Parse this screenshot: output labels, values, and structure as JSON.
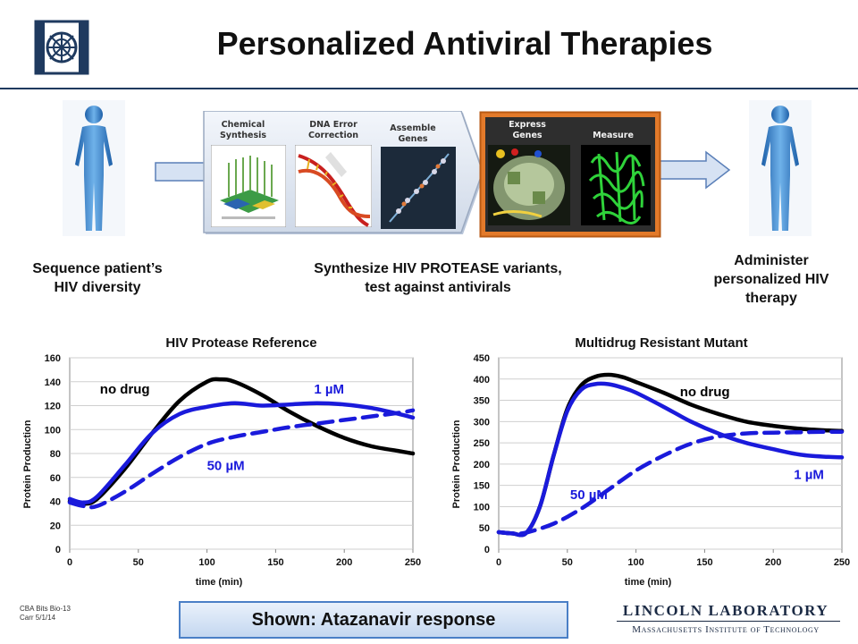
{
  "slide": {
    "title": "Personalized Antiviral Therapies",
    "captions": {
      "sequence": [
        "Sequence patient’s",
        "HIV diversity"
      ],
      "synthesize": [
        "Synthesize HIV PROTEASE variants,",
        "test against antivirals"
      ],
      "administer": [
        "Administer",
        "personalized HIV",
        "therapy"
      ]
    },
    "steps": [
      {
        "label": [
          "Chemical",
          "Synthesis"
        ]
      },
      {
        "label": [
          "DNA Error",
          "Correction"
        ]
      },
      {
        "label": [
          "Assemble",
          "Genes"
        ]
      },
      {
        "label": [
          "Express",
          "Genes"
        ]
      },
      {
        "label": [
          "Measure"
        ]
      }
    ],
    "footnote": [
      "CBA Bits Bio-13",
      "Carr 5/1/14"
    ],
    "banner": "Shown: Atazanavir response",
    "logo": {
      "line1": "LINCOLN LABORATORY",
      "line2": "Massachusetts Institute of Technology"
    },
    "colors": {
      "accent": "#1f3a5f",
      "series_blue": "#1a1adb",
      "series_black": "#000000",
      "frame_orange": "#e07020"
    }
  },
  "chart_data": [
    {
      "type": "line",
      "title": "HIV Protease Reference",
      "xlabel": "time (min)",
      "ylabel": "Protein Production",
      "xlim": [
        0,
        250
      ],
      "ylim": [
        0,
        160
      ],
      "xticks": [
        0,
        50,
        100,
        150,
        200,
        250
      ],
      "yticks": [
        0,
        20,
        40,
        60,
        80,
        100,
        120,
        140,
        160
      ],
      "grid": true,
      "series": [
        {
          "name": "no drug",
          "style": "solid",
          "color": "#000000",
          "x": [
            0,
            10,
            20,
            40,
            60,
            80,
            100,
            110,
            120,
            140,
            160,
            180,
            200,
            220,
            240,
            250
          ],
          "y": [
            40,
            38,
            42,
            67,
            97,
            124,
            140,
            142,
            140,
            129,
            115,
            103,
            93,
            86,
            82,
            80
          ]
        },
        {
          "name": "1 µM",
          "style": "solid",
          "color": "#1a1adb",
          "x": [
            0,
            10,
            20,
            40,
            60,
            80,
            100,
            120,
            140,
            160,
            180,
            200,
            220,
            240,
            250
          ],
          "y": [
            42,
            39,
            44,
            70,
            97,
            113,
            119,
            122,
            120,
            121,
            122,
            121,
            118,
            113,
            110
          ]
        },
        {
          "name": "50 µM",
          "style": "dashed",
          "color": "#1a1adb",
          "x": [
            0,
            10,
            20,
            40,
            60,
            80,
            100,
            120,
            140,
            160,
            180,
            200,
            220,
            240,
            250
          ],
          "y": [
            39,
            36,
            36,
            48,
            63,
            77,
            88,
            94,
            98,
            102,
            105,
            108,
            111,
            114,
            116
          ]
        }
      ],
      "annotations": [
        {
          "text": "no drug",
          "color": "#000000",
          "x": 22,
          "y": 130
        },
        {
          "text": "1 µM",
          "color": "#1a1adb",
          "x": 178,
          "y": 130
        },
        {
          "text": "50 µM",
          "color": "#1a1adb",
          "x": 100,
          "y": 66
        }
      ]
    },
    {
      "type": "line",
      "title": "Multidrug Resistant Mutant",
      "xlabel": "time (min)",
      "ylabel": "Protein Production",
      "xlim": [
        0,
        250
      ],
      "ylim": [
        0,
        450
      ],
      "xticks": [
        0,
        50,
        100,
        150,
        200,
        250
      ],
      "yticks": [
        0,
        50,
        100,
        150,
        200,
        250,
        300,
        350,
        400,
        450
      ],
      "grid": true,
      "series": [
        {
          "name": "no drug",
          "style": "solid",
          "color": "#000000",
          "x": [
            0,
            10,
            20,
            30,
            40,
            50,
            60,
            70,
            80,
            90,
            100,
            120,
            140,
            160,
            180,
            200,
            220,
            240,
            250
          ],
          "y": [
            40,
            37,
            38,
            100,
            220,
            330,
            385,
            405,
            410,
            405,
            393,
            368,
            340,
            318,
            300,
            290,
            283,
            279,
            278
          ]
        },
        {
          "name": "1 µM",
          "style": "solid",
          "color": "#1a1adb",
          "x": [
            0,
            10,
            20,
            30,
            40,
            50,
            60,
            70,
            80,
            90,
            100,
            120,
            140,
            160,
            180,
            200,
            220,
            240,
            250
          ],
          "y": [
            40,
            37,
            38,
            100,
            220,
            325,
            375,
            388,
            388,
            380,
            368,
            335,
            300,
            272,
            250,
            235,
            222,
            217,
            216
          ]
        },
        {
          "name": "50 µM",
          "style": "dashed",
          "color": "#1a1adb",
          "x": [
            0,
            10,
            20,
            40,
            60,
            80,
            100,
            120,
            140,
            160,
            180,
            200,
            220,
            240,
            250
          ],
          "y": [
            40,
            37,
            39,
            60,
            95,
            140,
            185,
            220,
            248,
            265,
            272,
            274,
            275,
            276,
            276
          ]
        }
      ],
      "annotations": [
        {
          "text": "no drug",
          "color": "#000000",
          "x": 132,
          "y": 360
        },
        {
          "text": "1 µM",
          "color": "#1a1adb",
          "x": 215,
          "y": 165
        },
        {
          "text": "50 µM",
          "color": "#1a1adb",
          "x": 52,
          "y": 118
        }
      ]
    }
  ]
}
